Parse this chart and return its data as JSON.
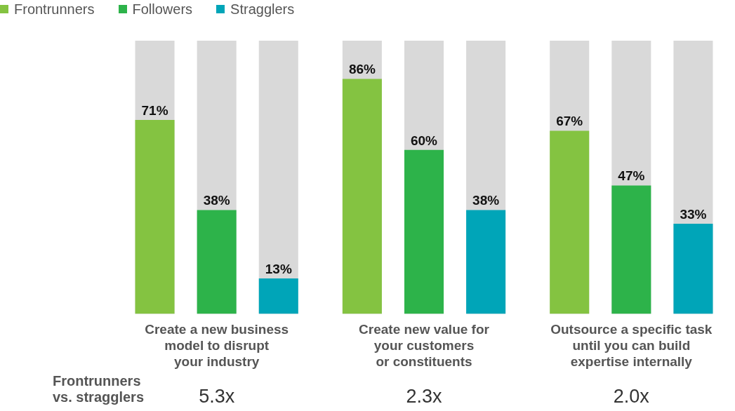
{
  "chart_data": {
    "type": "bar",
    "categories": [
      "Create a new business\nmodel to disrupt\nyour industry",
      "Create new value for\nyour customers\nor constituents",
      "Outsource a specific task\nuntil you can build\nexpertise internally"
    ],
    "series": [
      {
        "name": "Frontrunners",
        "color": "#84c341",
        "values": [
          71,
          86,
          67
        ],
        "value_labels": [
          "71%",
          "86%",
          "67%"
        ]
      },
      {
        "name": "Followers",
        "color": "#2db34a",
        "values": [
          38,
          60,
          47
        ],
        "value_labels": [
          "38%",
          "60%",
          "47%"
        ]
      },
      {
        "name": "Stragglers",
        "color": "#00a5b8",
        "values": [
          13,
          38,
          33
        ],
        "value_labels": [
          "13%",
          "38%",
          "33%"
        ]
      }
    ],
    "ylim": [
      0,
      100
    ],
    "tick_labels": "x",
    "grid": false,
    "legend": "top left",
    "annotations": [
      "Frontrunners\nvs. stragglers",
      "5.3x",
      "2.3x",
      "2.0x"
    ]
  }
}
